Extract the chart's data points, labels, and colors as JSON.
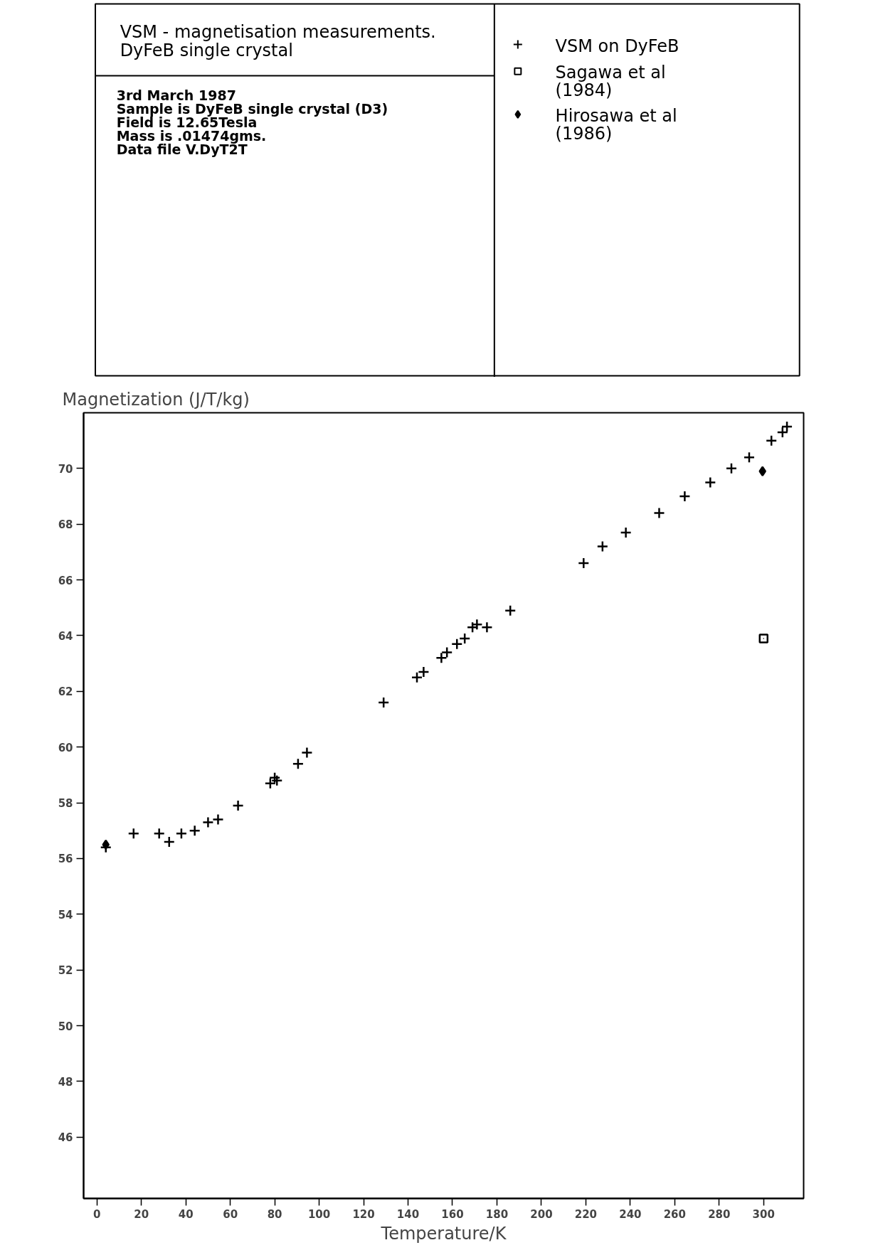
{
  "chart_data": {
    "type": "scatter",
    "title": "VSM - magnetisation measurements.\nDyFeB single crystal",
    "annotations": [
      "3rd March 1987",
      "Sample is DyFeB single crystal (D3)",
      "Field is 12.65Tesla",
      "Mass is .01474gms.",
      "Data file V.DyT2T"
    ],
    "ylabel": "Magnetization (J/T/kg)",
    "xlabel": "Temperature/K",
    "xlim": [
      -6,
      318
    ],
    "ylim": [
      43.8,
      72.0
    ],
    "xticks": [
      0,
      20,
      40,
      60,
      80,
      100,
      120,
      140,
      160,
      180,
      200,
      220,
      240,
      260,
      280,
      300
    ],
    "yticks": [
      46,
      48,
      50,
      52,
      54,
      56,
      58,
      60,
      62,
      64,
      66,
      68,
      70
    ],
    "grid": false,
    "legend": "top right",
    "series": [
      {
        "name": "VSM on DyFeB",
        "color": "#000000",
        "marker": "cross",
        "x": [
          4,
          16.5,
          28,
          32.5,
          38,
          44,
          50,
          54.5,
          63.5,
          78,
          80,
          81,
          90.5,
          94.5,
          129,
          144,
          147,
          155,
          157.5,
          162,
          165.5,
          169,
          171,
          175.5,
          186,
          219,
          227.5,
          238,
          253,
          264.5,
          276,
          285.5,
          293.5,
          303.5,
          308.5,
          310.5
        ],
        "values": [
          56.4,
          56.9,
          56.9,
          56.6,
          56.9,
          57.0,
          57.3,
          57.4,
          57.9,
          58.7,
          58.9,
          58.8,
          59.4,
          59.8,
          61.6,
          62.5,
          62.7,
          63.2,
          63.4,
          63.7,
          63.9,
          64.3,
          64.4,
          64.3,
          64.9,
          66.6,
          67.2,
          67.7,
          68.4,
          69.0,
          69.5,
          70.0,
          70.4,
          71.0,
          71.3,
          71.5
        ]
      },
      {
        "name": "Sagawa et al\n(1984)",
        "color": "#000000",
        "marker": "square",
        "x": [
          300
        ],
        "values": [
          63.9
        ]
      },
      {
        "name": "Hirosawa et al\n(1986)",
        "color": "#000000",
        "marker": "diamond",
        "x": [
          4,
          299.5
        ],
        "values": [
          56.5,
          69.9
        ]
      }
    ]
  }
}
